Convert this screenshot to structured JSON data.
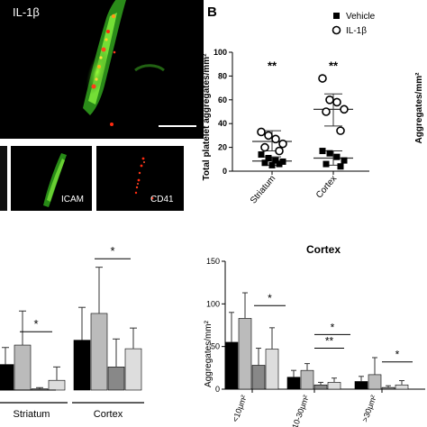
{
  "panel_b_letter": "B",
  "micrographs": {
    "top_label": "IL-1β",
    "bottom_left_label": "ICAM",
    "bottom_right_label": "CD41"
  },
  "colors": {
    "black": "#000000",
    "gray_light": "#bbbbbb",
    "gray_mid": "#888888",
    "gray_pale": "#dddddd",
    "error": "#555555"
  },
  "chart_data": [
    {
      "type": "scatter",
      "ylabel": "Total platelet aggregates/mm²",
      "ylim": [
        0,
        100
      ],
      "yticks": [
        "0",
        "20",
        "40",
        "60",
        "80",
        "100"
      ],
      "categories": [
        "Striatum",
        "Cortex"
      ],
      "legend": [
        {
          "name": "Vehicle",
          "marker": "filled-square"
        },
        {
          "name": "IL-1β",
          "marker": "open-circle"
        }
      ],
      "legend_position": "top-right",
      "significance": [
        "**",
        "**"
      ],
      "series": [
        {
          "name": "Vehicle",
          "category": "Striatum",
          "values": [
            14,
            11,
            9,
            8,
            7,
            6,
            5
          ],
          "mean": 8.5,
          "sd_low": 5,
          "sd_high": 12
        },
        {
          "name": "IL-1β",
          "category": "Striatum",
          "values": [
            33,
            30,
            27,
            23,
            20,
            17
          ],
          "mean": 25,
          "sd_low": 17,
          "sd_high": 34
        },
        {
          "name": "Vehicle",
          "category": "Cortex",
          "values": [
            17,
            15,
            12,
            9,
            6,
            4
          ],
          "mean": 11,
          "sd_low": 5,
          "sd_high": 17
        },
        {
          "name": "IL-1β",
          "category": "Cortex",
          "values": [
            78,
            60,
            58,
            52,
            50,
            34
          ],
          "mean": 52,
          "sd_low": 38,
          "sd_high": 65
        }
      ],
      "right_cut_label": "Aggregates/mm²"
    },
    {
      "type": "bar",
      "categories": [
        "Striatum",
        "Cortex"
      ],
      "significance": [
        {
          "category": "Striatum",
          "label": "*"
        },
        {
          "category": "Cortex",
          "label": "*"
        }
      ],
      "series": [
        {
          "color": "#000000",
          "values": [
            21,
            41
          ],
          "error": [
            14,
            27
          ]
        },
        {
          "color": "#bbbbbb",
          "values": [
            37,
            63
          ],
          "error": [
            28,
            38
          ]
        },
        {
          "color": "#888888",
          "values": [
            1,
            19
          ],
          "error": [
            1,
            23
          ]
        },
        {
          "color": "#dddddd",
          "values": [
            8,
            34
          ],
          "error": [
            11,
            17
          ]
        }
      ]
    },
    {
      "type": "bar",
      "title": "Cortex",
      "ylabel": "Aggregates/mm²",
      "ylim": [
        0,
        150
      ],
      "yticks": [
        "0",
        "50",
        "100",
        "150"
      ],
      "categories": [
        "<10μm²",
        "10-30μm²",
        ">30μm²"
      ],
      "significance": [
        {
          "category": "<10μm²",
          "label": "*"
        },
        {
          "category": "10-30μm²",
          "label": "**"
        },
        {
          "category": "10-30μm²",
          "label": "*"
        },
        {
          "category": ">30μm²",
          "label": "*"
        }
      ],
      "series": [
        {
          "color": "#000000",
          "values": [
            55,
            14,
            9
          ],
          "error": [
            35,
            8,
            6
          ]
        },
        {
          "color": "#bbbbbb",
          "values": [
            83,
            22,
            17
          ],
          "error": [
            30,
            8,
            20
          ]
        },
        {
          "color": "#888888",
          "values": [
            28,
            5,
            2
          ],
          "error": [
            20,
            3,
            2
          ]
        },
        {
          "color": "#dddddd",
          "values": [
            47,
            8,
            5
          ],
          "error": [
            25,
            5,
            5
          ]
        }
      ]
    }
  ]
}
